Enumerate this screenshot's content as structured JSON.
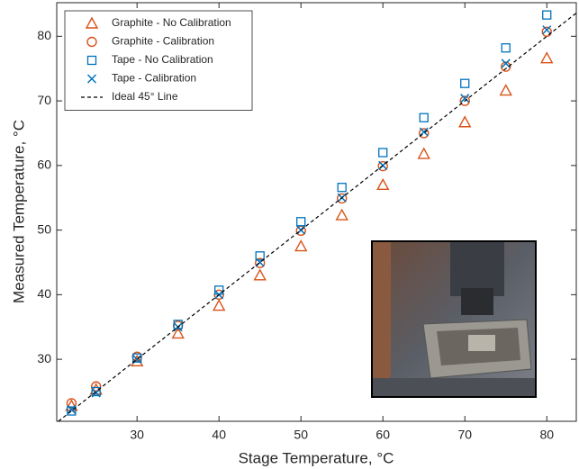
{
  "chart_data": {
    "type": "scatter",
    "x_label": "Stage Temperature, °C",
    "y_label": "Measured Temperature, °C",
    "xlim": [
      20.2,
      83.6
    ],
    "ylim": [
      20.4,
      85.2
    ],
    "xticks": [
      30,
      40,
      50,
      60,
      70,
      80
    ],
    "yticks": [
      30,
      40,
      50,
      60,
      70,
      80
    ],
    "legend": "upper left",
    "series": [
      {
        "name": "Graphite - No Calibration",
        "color": "#d95319",
        "marker": "triangle",
        "x": [
          22,
          25,
          30,
          35,
          40,
          45,
          50,
          55,
          60,
          65,
          70,
          75,
          80
        ],
        "values": [
          22.8,
          25.3,
          29.7,
          34.0,
          38.3,
          43.0,
          47.5,
          52.3,
          57.0,
          61.8,
          66.7,
          71.6,
          76.6
        ]
      },
      {
        "name": "Graphite - Calibration",
        "color": "#d95319",
        "marker": "circle",
        "x": [
          22,
          25,
          30,
          35,
          40,
          45,
          50,
          55,
          60,
          65,
          70,
          75,
          80
        ],
        "values": [
          23.2,
          25.8,
          30.4,
          35.2,
          40.0,
          44.9,
          49.9,
          54.9,
          59.9,
          65.0,
          70.0,
          75.3,
          80.7
        ]
      },
      {
        "name": "Tape - No Calibration",
        "color": "#0072bd",
        "marker": "square",
        "x": [
          22,
          25,
          30,
          35,
          40,
          45,
          50,
          55,
          60,
          65,
          70,
          75,
          80
        ],
        "values": [
          22.0,
          25.0,
          30.2,
          35.4,
          40.7,
          46.0,
          51.3,
          56.6,
          62.0,
          67.4,
          72.7,
          78.2,
          83.3
        ]
      },
      {
        "name": "Tape - Calibration",
        "color": "#0072bd",
        "marker": "x",
        "x": [
          22,
          25,
          30,
          35,
          40,
          45,
          50,
          55,
          60,
          65,
          70,
          75,
          80
        ],
        "values": [
          22.2,
          24.8,
          30.0,
          35.0,
          40.0,
          45.0,
          50.0,
          55.0,
          60.0,
          65.2,
          70.4,
          75.8,
          81.0
        ]
      },
      {
        "name": "Ideal 45° Line",
        "color": "#000000",
        "marker": "dashed-line",
        "x": [
          20.4,
          83.6
        ],
        "values": [
          20.4,
          83.6
        ]
      }
    ]
  }
}
